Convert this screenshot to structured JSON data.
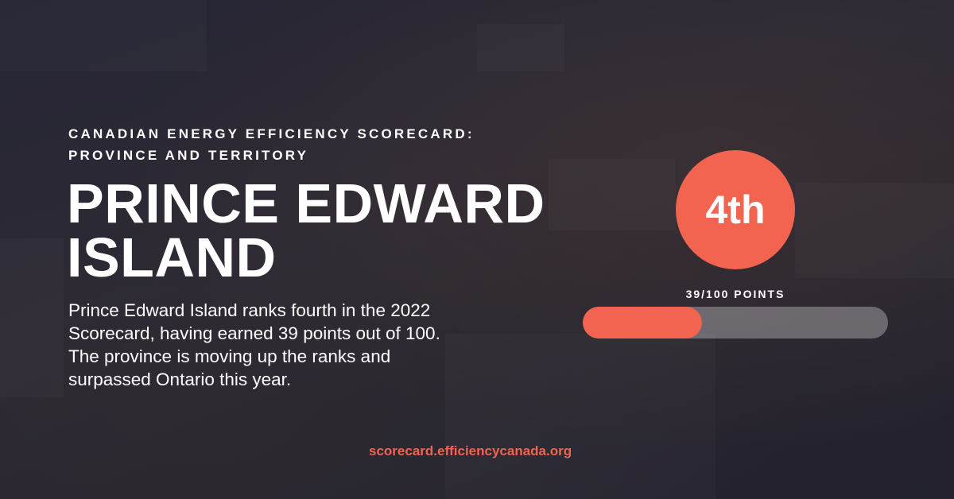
{
  "kicker": {
    "line1": "CANADIAN ENERGY EFFICIENCY SCORECARD:",
    "line2": "PROVINCE AND TERRITORY"
  },
  "title": {
    "line1": "PRINCE EDWARD",
    "line2": "ISLAND"
  },
  "description": "Prince Edward Island ranks fourth in the 2022 Scorecard, having earned 39 points out of 100. The province is moving up the ranks and surpassed Ontario this year.",
  "rank": "4th",
  "score": {
    "label": "39/100 POINTS",
    "value": 39,
    "max": 100
  },
  "url": "scorecard.efficiencycanada.org",
  "colors": {
    "accent": "#f26350",
    "background": "#2b2a38"
  }
}
